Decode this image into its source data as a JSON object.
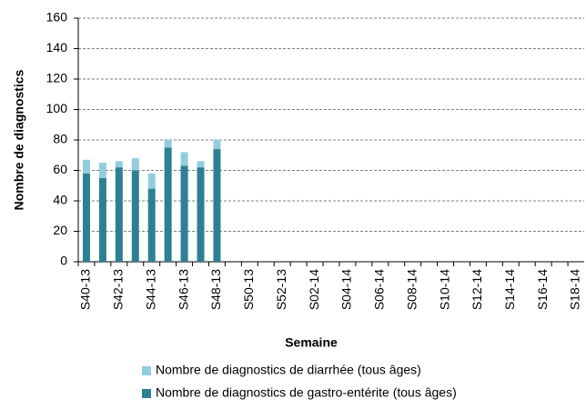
{
  "chart_data": {
    "type": "stacked-bar",
    "y_label": "Nombre de diagnostics",
    "x_label": "Semaine",
    "categories": [
      "S40-13",
      null,
      "S42-13",
      null,
      "S44-13",
      null,
      "S46-13",
      null,
      "S48-13",
      null,
      "S50-13",
      null,
      "S52-13",
      null,
      "S02-14",
      null,
      "S04-14",
      null,
      "S06-14",
      null,
      "S08-14",
      null,
      "S10-14",
      null,
      "S12-14",
      null,
      "S14-14",
      null,
      "S16-14",
      null,
      "S18-14"
    ],
    "series": [
      {
        "name": "Nombre de diagnostics de diarrhée (tous âges)",
        "color": "#92cddd",
        "values": [
          9,
          10,
          4,
          8,
          10,
          5,
          9,
          4,
          6,
          null,
          null,
          null,
          null,
          null,
          null,
          null,
          null,
          null,
          null,
          null,
          null,
          null,
          null,
          null,
          null,
          null,
          null,
          null,
          null,
          null,
          null
        ]
      },
      {
        "name": "Nombre de diagnostics de gastro-entérite (tous âges)",
        "color": "#2e7f94",
        "values": [
          58,
          55,
          62,
          60,
          48,
          75,
          63,
          62,
          74,
          null,
          null,
          null,
          null,
          null,
          null,
          null,
          null,
          null,
          null,
          null,
          null,
          null,
          null,
          null,
          null,
          null,
          null,
          null,
          null,
          null,
          null
        ]
      }
    ],
    "ylim": [
      0,
      160
    ],
    "yticks": [
      0,
      20,
      40,
      60,
      80,
      100,
      120,
      140,
      160
    ],
    "grid": true
  }
}
